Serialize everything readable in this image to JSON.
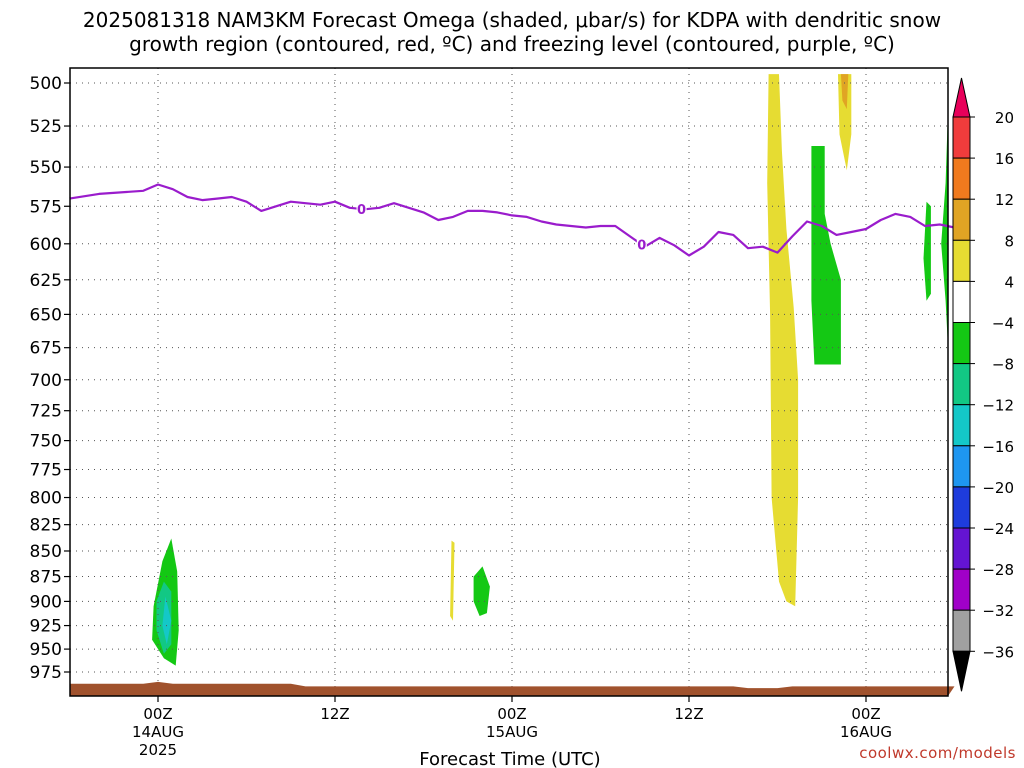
{
  "chart_data": {
    "type": "heatmap",
    "title_line1": "2025081318 NAM3KM Forecast Omega (shaded, μbar/s) for KDPA with dendritic snow",
    "title_line2": "growth region (contoured, red, ºC) and freezing level (contoured, purple, ºC)",
    "xlabel": "Forecast Time (UTC)",
    "ylabel": "",
    "x_axis": {
      "unit": "forecast hour (init 2025081318)",
      "range": [
        0,
        60
      ],
      "ticks": [
        {
          "hour": 6,
          "label": "00Z",
          "sub1": "14AUG",
          "sub2": "2025"
        },
        {
          "hour": 18,
          "label": "12Z",
          "sub1": "",
          "sub2": ""
        },
        {
          "hour": 30,
          "label": "00Z",
          "sub1": "15AUG",
          "sub2": ""
        },
        {
          "hour": 42,
          "label": "12Z",
          "sub1": "",
          "sub2": ""
        },
        {
          "hour": 54,
          "label": "00Z",
          "sub1": "16AUG",
          "sub2": ""
        }
      ]
    },
    "y_axis": {
      "unit": "hPa",
      "scale": "log",
      "range": [
        1000,
        495
      ],
      "ticks": [
        500,
        525,
        550,
        575,
        600,
        625,
        650,
        675,
        700,
        725,
        750,
        775,
        800,
        825,
        850,
        875,
        900,
        925,
        950,
        975
      ]
    },
    "grid": true,
    "colorbar": {
      "levels": [
        "20",
        "16",
        "12",
        "8",
        "4",
        "−4",
        "−8",
        "−12",
        "−16",
        "−20",
        "−24",
        "−28",
        "−32",
        "−36"
      ],
      "colors": [
        "#e8005a",
        "#f03c3c",
        "#f07a1e",
        "#e0a424",
        "#e6dc32",
        "#ffffff",
        "#14c814",
        "#12c884",
        "#14c8c8",
        "#1e96f0",
        "#1e3cdc",
        "#6414d2",
        "#a000c8",
        "#a0a0a0",
        "#000000"
      ]
    },
    "freezing_level": {
      "label": "0",
      "color": "#9a1ccc",
      "label_hours": [
        19.8,
        38.8
      ],
      "points": [
        [
          0,
          570
        ],
        [
          2,
          567
        ],
        [
          5,
          565
        ],
        [
          6,
          561
        ],
        [
          7,
          564
        ],
        [
          8,
          569
        ],
        [
          9,
          571
        ],
        [
          10,
          570
        ],
        [
          11,
          569
        ],
        [
          12,
          572
        ],
        [
          13,
          578
        ],
        [
          14,
          575
        ],
        [
          15,
          572
        ],
        [
          16,
          573
        ],
        [
          17,
          574
        ],
        [
          18,
          572
        ],
        [
          19,
          576
        ],
        [
          20,
          577
        ],
        [
          21,
          576
        ],
        [
          22,
          573
        ],
        [
          23,
          576
        ],
        [
          24,
          579
        ],
        [
          25,
          584
        ],
        [
          26,
          582
        ],
        [
          27,
          578
        ],
        [
          28,
          578
        ],
        [
          29,
          579
        ],
        [
          30,
          581
        ],
        [
          31,
          582
        ],
        [
          32,
          585
        ],
        [
          33,
          587
        ],
        [
          34,
          588
        ],
        [
          35,
          589
        ],
        [
          36,
          588
        ],
        [
          37,
          588
        ],
        [
          38,
          595
        ],
        [
          39,
          602
        ],
        [
          40,
          596
        ],
        [
          41,
          601
        ],
        [
          42,
          608
        ],
        [
          43,
          602
        ],
        [
          44,
          592
        ],
        [
          45,
          594
        ],
        [
          46,
          603
        ],
        [
          47,
          602
        ],
        [
          48,
          606
        ],
        [
          49,
          595
        ],
        [
          50,
          585
        ],
        [
          51,
          588
        ],
        [
          52,
          594
        ],
        [
          53,
          592
        ],
        [
          54,
          590
        ],
        [
          55,
          584
        ],
        [
          56,
          580
        ],
        [
          57,
          582
        ],
        [
          58,
          588
        ],
        [
          59,
          587
        ],
        [
          60,
          589
        ]
      ]
    },
    "surface": {
      "color": "#a0522d",
      "points": [
        [
          0,
          988
        ],
        [
          5,
          988
        ],
        [
          6,
          986
        ],
        [
          7,
          988
        ],
        [
          15,
          988
        ],
        [
          16,
          991
        ],
        [
          45,
          991
        ],
        [
          46,
          993
        ],
        [
          48,
          993
        ],
        [
          49,
          991
        ],
        [
          60,
          991
        ]
      ]
    },
    "omega_regions": [
      {
        "value": -6,
        "color": "#14c814",
        "points": [
          [
            5.7,
            905
          ],
          [
            6.3,
            860
          ],
          [
            6.9,
            838
          ],
          [
            7.3,
            870
          ],
          [
            7.4,
            930
          ],
          [
            7.2,
            968
          ],
          [
            6.4,
            960
          ],
          [
            5.6,
            940
          ]
        ]
      },
      {
        "value": -10,
        "color": "#12c884",
        "points": [
          [
            5.9,
            900
          ],
          [
            6.4,
            880
          ],
          [
            6.9,
            890
          ],
          [
            6.9,
            945
          ],
          [
            6.4,
            955
          ],
          [
            5.9,
            930
          ]
        ]
      },
      {
        "value": -14,
        "color": "#14c8c8",
        "points": [
          [
            6.5,
            895
          ],
          [
            6.9,
            920
          ],
          [
            6.6,
            945
          ],
          [
            6.3,
            925
          ]
        ]
      },
      {
        "value": 5,
        "color": "#e6dc32",
        "points": [
          [
            25.9,
            840
          ],
          [
            26.1,
            842
          ],
          [
            26.0,
            920
          ],
          [
            25.8,
            915
          ]
        ]
      },
      {
        "value": -5,
        "color": "#14c814",
        "points": [
          [
            27.4,
            875
          ],
          [
            28.0,
            865
          ],
          [
            28.5,
            885
          ],
          [
            28.3,
            912
          ],
          [
            27.8,
            915
          ],
          [
            27.4,
            900
          ]
        ]
      },
      {
        "value": 5,
        "color": "#e6dc32",
        "points": [
          [
            47.4,
            495
          ],
          [
            48.1,
            495
          ],
          [
            48.3,
            540
          ],
          [
            48.6,
            590
          ],
          [
            49.1,
            645
          ],
          [
            49.4,
            700
          ],
          [
            49.4,
            800
          ],
          [
            49.2,
            905
          ],
          [
            48.6,
            900
          ],
          [
            48.1,
            880
          ],
          [
            47.6,
            800
          ],
          [
            47.5,
            650
          ],
          [
            47.3,
            560
          ]
        ]
      },
      {
        "value": -6,
        "color": "#14c814",
        "points": [
          [
            50.3,
            537
          ],
          [
            51.2,
            537
          ],
          [
            51.2,
            580
          ],
          [
            51.6,
            600
          ],
          [
            52.3,
            625
          ],
          [
            52.3,
            688
          ],
          [
            50.5,
            688
          ],
          [
            50.3,
            640
          ]
        ]
      },
      {
        "value": 5,
        "color": "#e6dc32",
        "points": [
          [
            52.1,
            495
          ],
          [
            53.0,
            495
          ],
          [
            53.0,
            530
          ],
          [
            52.7,
            552
          ],
          [
            52.2,
            530
          ]
        ]
      },
      {
        "value": 9,
        "color": "#e0a424",
        "points": [
          [
            52.3,
            495
          ],
          [
            52.8,
            495
          ],
          [
            52.7,
            515
          ],
          [
            52.4,
            510
          ]
        ]
      },
      {
        "value": -5,
        "color": "#14c814",
        "points": [
          [
            58.1,
            572
          ],
          [
            58.4,
            575
          ],
          [
            58.4,
            635
          ],
          [
            58.1,
            640
          ],
          [
            57.9,
            610
          ]
        ]
      },
      {
        "value": -6,
        "color": "#14c814",
        "points": [
          [
            59.4,
            560
          ],
          [
            59.9,
            515
          ],
          [
            60,
            500
          ],
          [
            60,
            675
          ],
          [
            59.4,
            640
          ],
          [
            59.1,
            600
          ]
        ]
      },
      {
        "value": -10,
        "color": "#12c884",
        "points": [
          [
            59.6,
            580
          ],
          [
            60,
            520
          ],
          [
            60,
            610
          ]
        ]
      },
      {
        "value": -14,
        "color": "#14c8c8",
        "points": [
          [
            59.8,
            560
          ],
          [
            60,
            540
          ],
          [
            60,
            600
          ]
        ]
      }
    ]
  },
  "credit": "coolwx.com/models"
}
